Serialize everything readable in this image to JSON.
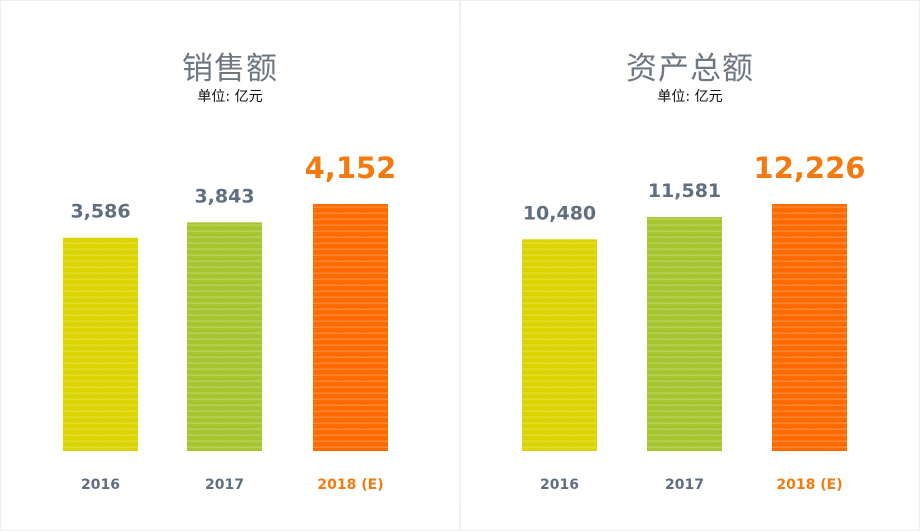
{
  "chart_data": [
    {
      "type": "bar",
      "title": "销售额",
      "subtitle": "单位: 亿元",
      "categories": [
        "2016",
        "2017",
        "2018 (E)"
      ],
      "values": [
        3586,
        3843,
        4152
      ],
      "value_labels": [
        "3,586",
        "3,843",
        "4,152"
      ],
      "bar_colors": [
        "#dcd400",
        "#a6c42e",
        "#ff6a00"
      ],
      "label_colors": [
        "#5f6f80",
        "#5f6f80",
        "#f47a10"
      ],
      "highlight_index": 2
    },
    {
      "type": "bar",
      "title": "资产总额",
      "subtitle": "单位: 亿元",
      "categories": [
        "2016",
        "2017",
        "2018 (E)"
      ],
      "values": [
        10480,
        11581,
        12226
      ],
      "value_labels": [
        "10,480",
        "11,581",
        "12,226"
      ],
      "bar_colors": [
        "#dcd400",
        "#a6c42e",
        "#ff6a00"
      ],
      "label_colors": [
        "#5f6f80",
        "#5f6f80",
        "#f47a10"
      ],
      "highlight_index": 2
    }
  ]
}
